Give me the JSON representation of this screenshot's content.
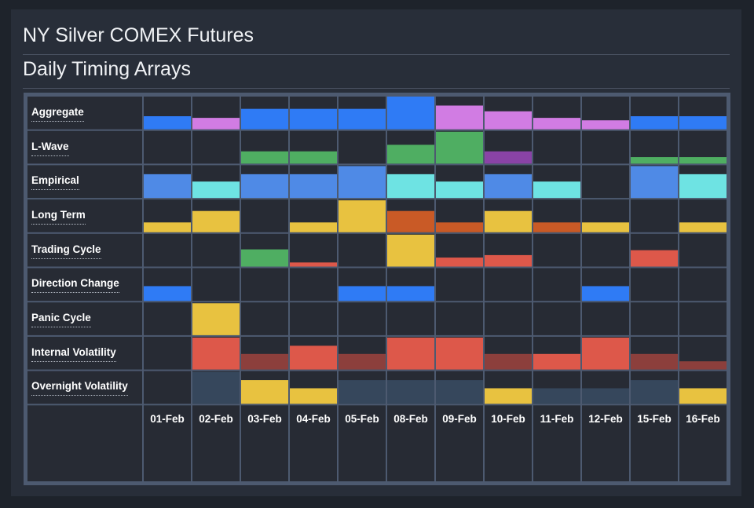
{
  "header": {
    "title": "NY Silver COMEX Futures",
    "subtitle": "Daily Timing Arrays"
  },
  "colors": {
    "blue": "#2f7bf5",
    "violet": "#d17ce3",
    "green": "#4fae62",
    "purple": "#8a43a6",
    "steel": "#4f8ae6",
    "cyan": "#6ee3e3",
    "yellow": "#e8c240",
    "orange": "#c95a26",
    "red": "#dd584a",
    "darkred": "#8c3f3c",
    "slate": "#36475c",
    "cell_bg": "#272b34",
    "grid_line": "#4d5a70"
  },
  "chart_data": {
    "type": "heatmap",
    "title": "Daily Timing Arrays",
    "encoding": "bar height within cell, scale 0-4",
    "categories": [
      "01-Feb",
      "02-Feb",
      "03-Feb",
      "04-Feb",
      "05-Feb",
      "08-Feb",
      "09-Feb",
      "10-Feb",
      "11-Feb",
      "12-Feb",
      "15-Feb",
      "16-Feb"
    ],
    "ylim": [
      0,
      4
    ],
    "series": [
      {
        "name": "Aggregate",
        "values": [
          1.6,
          1.4,
          2.5,
          2.5,
          2.5,
          4.0,
          2.9,
          2.2,
          1.4,
          1.1,
          1.6,
          1.6
        ],
        "colors": [
          "blue",
          "violet",
          "blue",
          "blue",
          "blue",
          "blue",
          "violet",
          "violet",
          "violet",
          "violet",
          "blue",
          "blue"
        ]
      },
      {
        "name": "L-Wave",
        "values": [
          0,
          0,
          1.5,
          1.5,
          0,
          2.3,
          3.9,
          1.5,
          0,
          0,
          0.8,
          0.8
        ],
        "colors": [
          "green",
          "green",
          "green",
          "green",
          "green",
          "green",
          "green",
          "purple",
          "green",
          "green",
          "green",
          "green"
        ]
      },
      {
        "name": "Empirical",
        "values": [
          2.9,
          2.0,
          2.9,
          2.9,
          3.9,
          2.9,
          2.0,
          2.9,
          2.0,
          0,
          3.9,
          2.9
        ],
        "colors": [
          "steel",
          "cyan",
          "steel",
          "steel",
          "steel",
          "cyan",
          "cyan",
          "steel",
          "cyan",
          "cyan",
          "steel",
          "cyan"
        ]
      },
      {
        "name": "Long Term",
        "values": [
          1.2,
          2.6,
          0,
          1.2,
          3.9,
          2.6,
          1.2,
          2.6,
          1.2,
          1.2,
          0,
          1.2
        ],
        "colors": [
          "yellow",
          "yellow",
          "yellow",
          "yellow",
          "yellow",
          "orange",
          "orange",
          "yellow",
          "orange",
          "yellow",
          "yellow",
          "yellow"
        ]
      },
      {
        "name": "Trading Cycle",
        "values": [
          0,
          0,
          2.1,
          0.5,
          0,
          3.9,
          1.1,
          1.4,
          0,
          0,
          2.0,
          0
        ],
        "colors": [
          "green",
          "green",
          "green",
          "red",
          "green",
          "yellow",
          "red",
          "red",
          "red",
          "red",
          "red",
          "red"
        ]
      },
      {
        "name": "Direction Change",
        "values": [
          1.8,
          0,
          0,
          0,
          1.8,
          1.8,
          0,
          0,
          0,
          1.8,
          0,
          0
        ],
        "colors": [
          "blue",
          "blue",
          "blue",
          "blue",
          "blue",
          "blue",
          "blue",
          "blue",
          "blue",
          "blue",
          "blue",
          "blue"
        ]
      },
      {
        "name": "Panic Cycle",
        "values": [
          0,
          3.9,
          0,
          0,
          0,
          0,
          0,
          0,
          0,
          0,
          0,
          0
        ],
        "colors": [
          "yellow",
          "yellow",
          "yellow",
          "yellow",
          "yellow",
          "yellow",
          "yellow",
          "yellow",
          "yellow",
          "yellow",
          "yellow",
          "yellow"
        ]
      },
      {
        "name": "Internal Volatility",
        "values": [
          0,
          3.9,
          1.9,
          2.9,
          1.9,
          3.9,
          3.9,
          1.9,
          1.9,
          3.9,
          1.9,
          1.0
        ],
        "colors": [
          "red",
          "red",
          "darkred",
          "red",
          "darkred",
          "red",
          "red",
          "darkred",
          "red",
          "red",
          "darkred",
          "darkred"
        ]
      },
      {
        "name": "Overnight Volatility",
        "values": [
          0,
          3.9,
          2.9,
          1.9,
          2.9,
          2.9,
          2.9,
          1.9,
          1.9,
          1.9,
          2.9,
          1.9
        ],
        "colors": [
          "slate",
          "slate",
          "yellow",
          "yellow",
          "slate",
          "slate",
          "slate",
          "yellow",
          "slate",
          "slate",
          "slate",
          "yellow"
        ]
      }
    ]
  }
}
